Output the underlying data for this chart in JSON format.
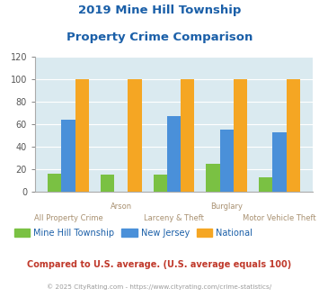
{
  "title_line1": "2019 Mine Hill Township",
  "title_line2": "Property Crime Comparison",
  "categories": [
    "All Property Crime",
    "Arson",
    "Larceny & Theft",
    "Burglary",
    "Motor Vehicle Theft"
  ],
  "mine_hill": [
    16,
    15,
    15,
    25,
    13
  ],
  "new_jersey": [
    64,
    0,
    67,
    55,
    53
  ],
  "national": [
    100,
    100,
    100,
    100,
    100
  ],
  "color_mine_hill": "#7ac143",
  "color_nj": "#4a90d9",
  "color_national": "#f5a623",
  "ylim": [
    0,
    120
  ],
  "yticks": [
    0,
    20,
    40,
    60,
    80,
    100,
    120
  ],
  "bg_color": "#daeaf0",
  "legend_mine_hill": "Mine Hill Township",
  "legend_nj": "New Jersey",
  "legend_national": "National",
  "footnote1": "Compared to U.S. average. (U.S. average equals 100)",
  "footnote2": "© 2025 CityRating.com - https://www.cityrating.com/crime-statistics/",
  "title_color": "#1a5fa8",
  "footnote1_color": "#c0392b",
  "footnote2_color": "#9b9b9b",
  "label_color": "#a89070",
  "top_labels": {
    "1": "Arson",
    "3": "Burglary"
  },
  "bottom_labels": {
    "0": "All Property Crime",
    "2": "Larceny & Theft",
    "4": "Motor Vehicle Theft"
  }
}
